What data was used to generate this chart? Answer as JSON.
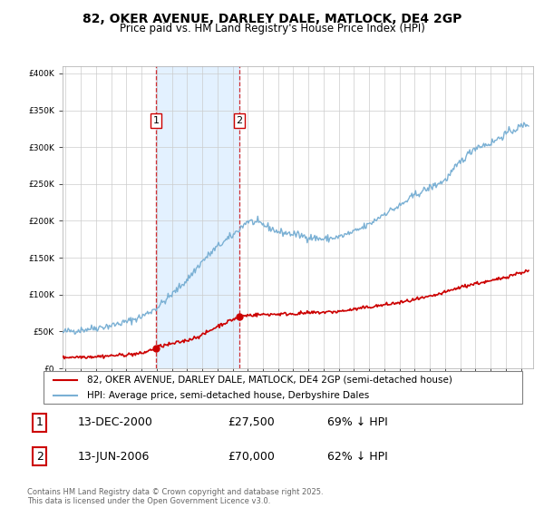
{
  "title": "82, OKER AVENUE, DARLEY DALE, MATLOCK, DE4 2GP",
  "subtitle": "Price paid vs. HM Land Registry's House Price Index (HPI)",
  "transactions": [
    {
      "num": 1,
      "date_str": "13-DEC-2000",
      "date_x": 2000.96,
      "price": 27500,
      "label": "69% ↓ HPI"
    },
    {
      "num": 2,
      "date_str": "13-JUN-2006",
      "date_x": 2006.45,
      "price": 70000,
      "label": "62% ↓ HPI"
    }
  ],
  "legend_entries": [
    "82, OKER AVENUE, DARLEY DALE, MATLOCK, DE4 2GP (semi-detached house)",
    "HPI: Average price, semi-detached house, Derbyshire Dales"
  ],
  "table_rows": [
    [
      "1",
      "13-DEC-2000",
      "£27,500",
      "69% ↓ HPI"
    ],
    [
      "2",
      "13-JUN-2006",
      "£70,000",
      "62% ↓ HPI"
    ]
  ],
  "footer": "Contains HM Land Registry data © Crown copyright and database right 2025.\nThis data is licensed under the Open Government Licence v3.0.",
  "sold_color": "#cc0000",
  "hpi_color": "#7ab0d4",
  "bg_shading_color": "#ddeeff",
  "vline_color": "#cc0000",
  "ylim": [
    0,
    410000
  ],
  "yticks": [
    0,
    50000,
    100000,
    150000,
    200000,
    250000,
    300000,
    350000,
    400000
  ],
  "xlim_start": 1994.8,
  "xlim_end": 2025.8
}
